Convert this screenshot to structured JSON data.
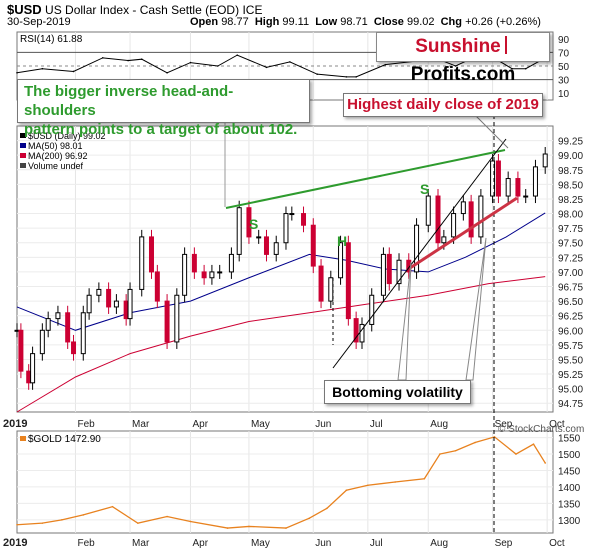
{
  "header": {
    "symbol": "$USD",
    "name": "US Dollar Index - Cash Settle (EOD)",
    "exchange": "ICE",
    "date": "30-Sep-2019",
    "open_label": "Open",
    "open": "98.77",
    "high_label": "High",
    "high": "99.11",
    "low_label": "Low",
    "low": "98.71",
    "close_label": "Close",
    "close": "99.02",
    "chg_label": "Chg",
    "chg": "+0.26 (+0.26%)",
    "watermark": "© StockCharts.com"
  },
  "branding": {
    "part1": "Sunshine",
    "part2": "Profits.com"
  },
  "annotations": {
    "head_shoulders": [
      "The bigger inverse head-and-shoulders",
      "pattern points to a target of about 102."
    ],
    "highest_close": "Highest daily close of 2019",
    "bottoming": "Bottoming volatility",
    "left_shoulder": "S",
    "head": "H",
    "right_shoulder": "S"
  },
  "colors": {
    "rsi": "#000000",
    "candle_up": "#000000",
    "candle_down": "#cc0033",
    "ma50": "#00008b",
    "ma200": "#cc0033",
    "neckline": "#2e9b2e",
    "pattern_letters": "#2e9b2e",
    "support": "#cc3344",
    "gold": "#e8821f",
    "brand_red": "#c8102e",
    "highest_text": "#c8102e",
    "annotation_green": "#2e9b2e"
  },
  "chart_data": [
    {
      "type": "line",
      "panel": "rsi",
      "legend": "RSI(14) 61.88",
      "y_ticks": [
        90,
        70,
        50,
        30,
        10
      ],
      "ylim": [
        0,
        100
      ],
      "reference_lines": [
        70,
        30
      ],
      "series": [
        {
          "name": "RSI(14)",
          "x": [
            "2019-01-02",
            "2019-01-15",
            "2019-01-31",
            "2019-02-15",
            "2019-02-28",
            "2019-03-07",
            "2019-03-20",
            "2019-04-01",
            "2019-04-15",
            "2019-04-25",
            "2019-05-10",
            "2019-05-22",
            "2019-06-05",
            "2019-06-20",
            "2019-06-25",
            "2019-07-10",
            "2019-07-25",
            "2019-08-01",
            "2019-08-15",
            "2019-08-30",
            "2019-09-13",
            "2019-09-20",
            "2019-09-30"
          ],
          "values": [
            40,
            46,
            42,
            62,
            58,
            60,
            40,
            55,
            50,
            66,
            48,
            56,
            38,
            34,
            34,
            52,
            57,
            66,
            50,
            70,
            46,
            46,
            61.88
          ]
        }
      ]
    },
    {
      "type": "candlestick",
      "panel": "price",
      "legend": [
        "$USD (Daily) 99.02",
        "MA(50) 98.01",
        "MA(200) 96.92",
        "Volume undef"
      ],
      "y_ticks": [
        "99.25",
        "99.00",
        "98.75",
        "98.50",
        "98.25",
        "98.00",
        "97.75",
        "97.50",
        "97.25",
        "97.00",
        "96.75",
        "96.50",
        "96.25",
        "96.00",
        "95.75",
        "95.50",
        "95.25",
        "95.00",
        "94.75"
      ],
      "ylim": [
        94.6,
        99.5
      ],
      "x_tick_labels": [
        "2019",
        "Feb",
        "Mar",
        "Apr",
        "May",
        "Jun",
        "Jul",
        "Aug",
        "Sep",
        "Oct"
      ],
      "series": [
        {
          "name": "$USD close",
          "x": [
            "2019-01-02",
            "2019-01-04",
            "2019-01-08",
            "2019-01-10",
            "2019-01-15",
            "2019-01-18",
            "2019-01-23",
            "2019-01-28",
            "2019-01-31",
            "2019-02-05",
            "2019-02-08",
            "2019-02-13",
            "2019-02-18",
            "2019-02-22",
            "2019-02-27",
            "2019-03-01",
            "2019-03-07",
            "2019-03-12",
            "2019-03-15",
            "2019-03-20",
            "2019-03-25",
            "2019-03-29",
            "2019-04-03",
            "2019-04-08",
            "2019-04-12",
            "2019-04-16",
            "2019-04-22",
            "2019-04-26",
            "2019-05-01",
            "2019-05-06",
            "2019-05-10",
            "2019-05-15",
            "2019-05-20",
            "2019-05-23",
            "2019-05-29",
            "2019-06-03",
            "2019-06-07",
            "2019-06-12",
            "2019-06-17",
            "2019-06-21",
            "2019-06-25",
            "2019-06-28",
            "2019-07-03",
            "2019-07-09",
            "2019-07-12",
            "2019-07-17",
            "2019-07-22",
            "2019-07-26",
            "2019-08-01",
            "2019-08-06",
            "2019-08-09",
            "2019-08-14",
            "2019-08-19",
            "2019-08-23",
            "2019-08-28",
            "2019-09-03",
            "2019-09-06",
            "2019-09-11",
            "2019-09-16",
            "2019-09-20",
            "2019-09-25",
            "2019-09-30"
          ],
          "values": [
            96.0,
            95.3,
            95.1,
            95.6,
            96.0,
            96.2,
            96.3,
            95.8,
            95.6,
            96.3,
            96.6,
            96.7,
            96.4,
            96.5,
            96.2,
            96.7,
            97.6,
            97.0,
            96.5,
            95.8,
            96.6,
            97.3,
            97.0,
            96.9,
            97.0,
            97.0,
            97.3,
            98.1,
            97.6,
            97.6,
            97.3,
            97.5,
            98.0,
            98.0,
            97.8,
            97.1,
            96.5,
            96.9,
            97.5,
            96.2,
            95.8,
            96.1,
            96.6,
            97.3,
            96.8,
            97.2,
            97.0,
            97.8,
            98.3,
            97.5,
            97.6,
            98.0,
            98.2,
            97.6,
            98.3,
            98.9,
            98.3,
            98.6,
            98.3,
            98.3,
            98.8,
            99.02
          ]
        },
        {
          "name": "MA(50)",
          "x": [
            "2019-01-02",
            "2019-02-01",
            "2019-03-01",
            "2019-04-01",
            "2019-05-01",
            "2019-06-01",
            "2019-06-20",
            "2019-07-10",
            "2019-08-01",
            "2019-08-20",
            "2019-09-10",
            "2019-09-30"
          ],
          "values": [
            96.4,
            96.0,
            96.3,
            96.5,
            96.9,
            97.3,
            97.2,
            97.05,
            97.0,
            97.25,
            97.6,
            98.01
          ]
        },
        {
          "name": "MA(200)",
          "x": [
            "2019-01-02",
            "2019-02-01",
            "2019-03-01",
            "2019-04-01",
            "2019-05-01",
            "2019-06-01",
            "2019-07-01",
            "2019-08-01",
            "2019-09-01",
            "2019-09-30"
          ],
          "values": [
            94.6,
            95.2,
            95.6,
            95.9,
            96.15,
            96.3,
            96.45,
            96.6,
            96.8,
            96.92
          ]
        }
      ]
    },
    {
      "type": "line",
      "panel": "gold",
      "legend": "$GOLD 1472.90",
      "y_ticks": [
        "1550",
        "1500",
        "1450",
        "1400",
        "1350",
        "1300"
      ],
      "ylim": [
        1260,
        1570
      ],
      "x_tick_labels": [
        "2019",
        "Feb",
        "Mar",
        "Apr",
        "May",
        "Jun",
        "Jul",
        "Aug",
        "Sep",
        "Oct"
      ],
      "series": [
        {
          "name": "$GOLD",
          "x": [
            "2019-01-02",
            "2019-01-15",
            "2019-01-25",
            "2019-02-05",
            "2019-02-20",
            "2019-03-05",
            "2019-03-20",
            "2019-04-01",
            "2019-04-20",
            "2019-05-01",
            "2019-05-20",
            "2019-06-01",
            "2019-06-10",
            "2019-06-20",
            "2019-07-01",
            "2019-07-15",
            "2019-07-30",
            "2019-08-07",
            "2019-08-15",
            "2019-08-25",
            "2019-09-04",
            "2019-09-15",
            "2019-09-24",
            "2019-09-30"
          ],
          "values": [
            1285,
            1290,
            1300,
            1315,
            1340,
            1290,
            1310,
            1295,
            1275,
            1280,
            1275,
            1305,
            1335,
            1390,
            1405,
            1415,
            1425,
            1500,
            1510,
            1535,
            1552,
            1500,
            1530,
            1472.9
          ]
        }
      ]
    }
  ]
}
